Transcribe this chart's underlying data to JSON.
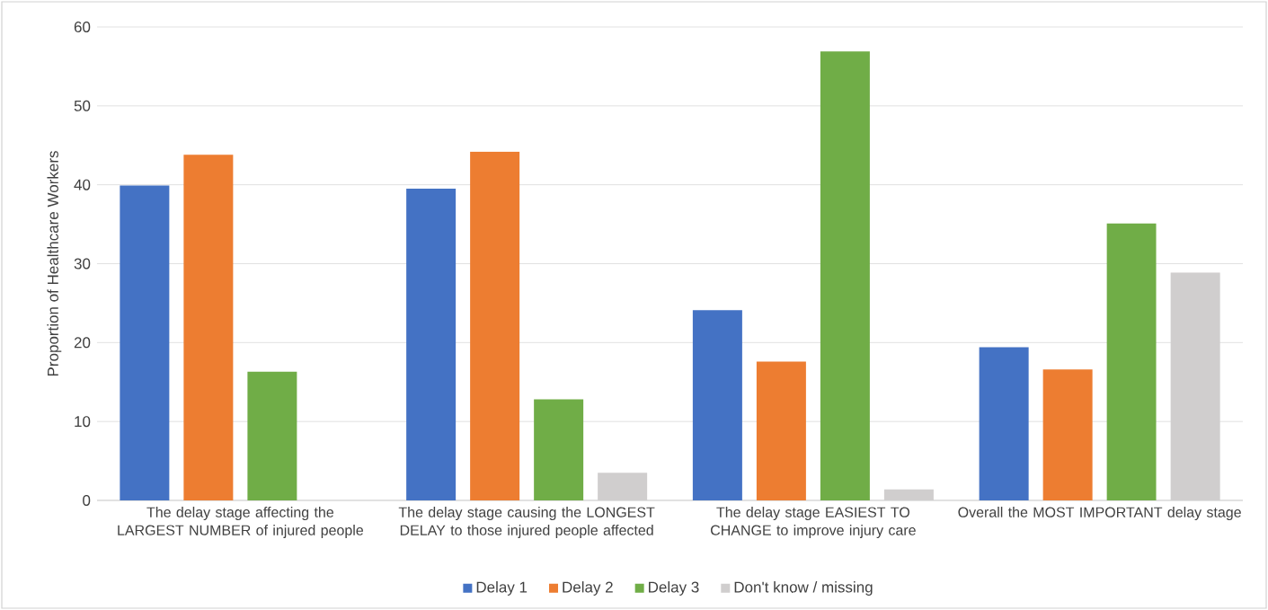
{
  "chart_data": {
    "type": "bar",
    "ylabel": "Proportion of Healthcare Workers",
    "categories": [
      "The delay stage affecting the LARGEST NUMBER of injured people",
      "The delay stage causing the LONGEST DELAY to those injured people affected",
      "The delay stage EASIEST TO CHANGE to improve injury care",
      "Overall the MOST IMPORTANT delay stage"
    ],
    "series": [
      {
        "name": "Delay 1",
        "color": "#4472c4",
        "values": [
          39.9,
          39.5,
          24.1,
          19.4
        ]
      },
      {
        "name": "Delay 2",
        "color": "#ed7d31",
        "values": [
          43.8,
          44.2,
          17.6,
          16.6
        ]
      },
      {
        "name": "Delay 3",
        "color": "#70ad47",
        "values": [
          16.3,
          12.8,
          56.9,
          35.1
        ]
      },
      {
        "name": "Don't know / missing",
        "color": "#d0cece",
        "values": [
          null,
          3.5,
          1.4,
          28.9
        ]
      }
    ],
    "ylim": [
      0,
      60
    ],
    "yticks": [
      0,
      10,
      20,
      30,
      40,
      50,
      60
    ],
    "grid": "y",
    "legend": "bottom"
  }
}
